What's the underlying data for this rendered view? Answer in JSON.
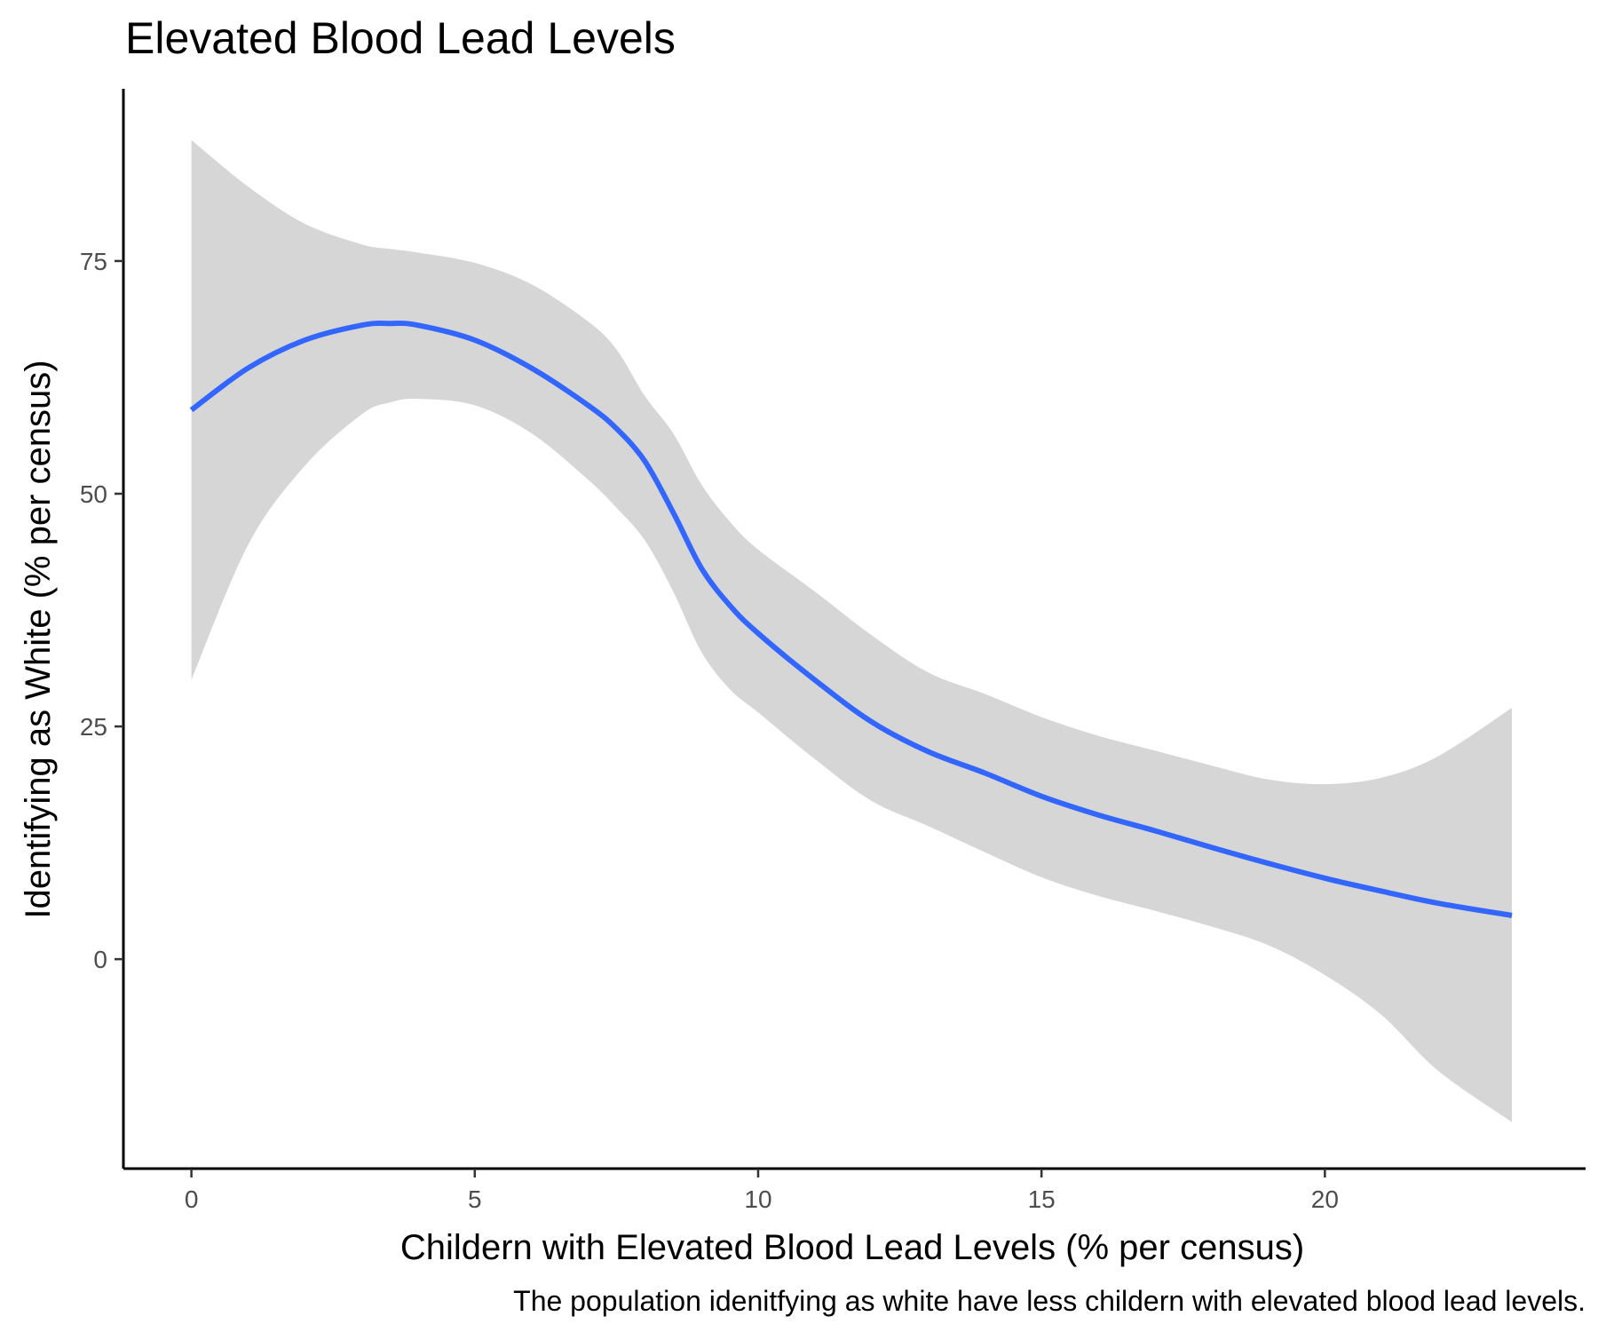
{
  "chart_data": {
    "type": "line",
    "title": "Elevated Blood Lead Levels",
    "xlabel": "Childern with Elevated Blood Lead Levels (% per census)",
    "ylabel": "Identifying as White (% per census)",
    "caption": "The population idenitfying as white have less childern with elevated blood lead levels.",
    "xlim": [
      -1.2,
      24.6
    ],
    "ylim": [
      -22.5,
      93.5
    ],
    "x_ticks": [
      0,
      5,
      10,
      15,
      20
    ],
    "x_tick_labels": [
      "0",
      "5",
      "10",
      "15",
      "20"
    ],
    "y_ticks": [
      0,
      25,
      50,
      75
    ],
    "y_tick_labels": [
      "0",
      "25",
      "50",
      "75"
    ],
    "grid": false,
    "colors": {
      "line": "#3366FF",
      "ribbon": "#d6d6d6",
      "axis": "#000000"
    },
    "series": [
      {
        "x": [
          0,
          1,
          2,
          3,
          3.5,
          4,
          5,
          6,
          7,
          7.5,
          8,
          8.5,
          9,
          9.5,
          10,
          11,
          12,
          13,
          14,
          15,
          16,
          17,
          18,
          19,
          20,
          21,
          22,
          23.3
        ],
        "y": [
          59,
          63.5,
          66.5,
          68.1,
          68.3,
          68.1,
          66.5,
          63.5,
          59.5,
          57,
          53.5,
          48,
          42,
          38,
          35,
          30,
          25.5,
          22.3,
          20,
          17.5,
          15.5,
          13.8,
          12,
          10.3,
          8.7,
          7.3,
          6,
          4.7
        ],
        "lower": [
          30,
          44.5,
          53,
          58.5,
          59.8,
          60.2,
          59.5,
          56.5,
          51.5,
          48.5,
          45,
          39.5,
          33,
          29,
          26.5,
          21.5,
          17,
          14.3,
          11.5,
          8.8,
          6.8,
          5.2,
          3.5,
          1.5,
          -1.7,
          -6,
          -12,
          -17.5
        ],
        "upper": [
          88,
          83,
          79,
          76.8,
          76.3,
          75.9,
          74.8,
          72.5,
          68.5,
          65.5,
          60.5,
          56.5,
          51,
          47,
          44,
          39.5,
          34.8,
          30.8,
          28.5,
          26,
          24,
          22.4,
          20.8,
          19.3,
          18.8,
          19.5,
          21.8,
          27
        ]
      }
    ]
  }
}
